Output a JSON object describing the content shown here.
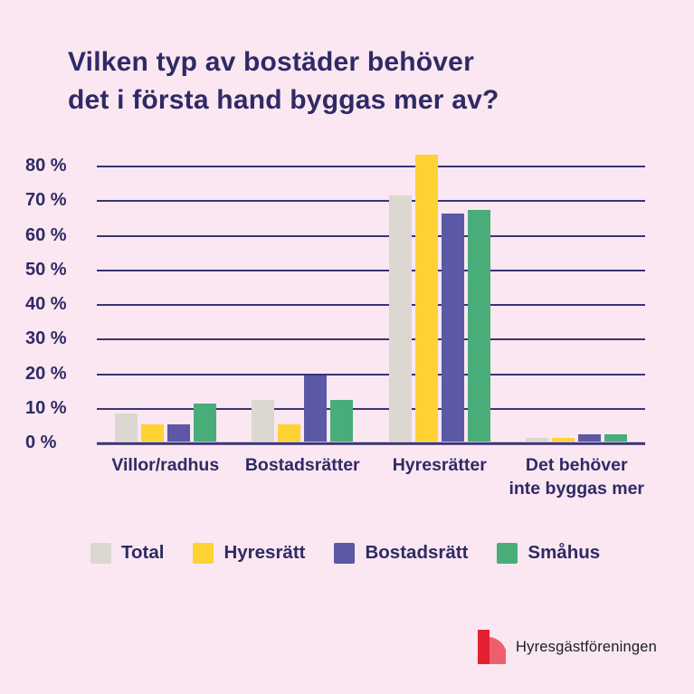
{
  "title_lines": [
    "Vilken typ av bostäder behöver",
    "det i första hand byggas mer av?"
  ],
  "colors": {
    "background": "#fae7f1",
    "heading_text": "#2f2a66",
    "gridline": "#3b3374",
    "bar_total": "#dcd8d1",
    "bar_hyresratt": "#ffd233",
    "bar_bostadsratt": "#5b59a5",
    "bar_smahus": "#48ad78",
    "logo_dark_red": "#e32132",
    "logo_light_red": "#ee5f6e",
    "logo_text": "#1d1d1b"
  },
  "chart_data": {
    "type": "bar",
    "title": "Vilken typ av bostäder behöver det i första hand byggas mer av?",
    "categories": [
      "Villor/radhus",
      "Bostadsrätter",
      "Hyresrätter",
      "Det behöver\ninte byggas mer"
    ],
    "series": [
      {
        "name": "Total",
        "color": "#dcd8d1",
        "values": [
          8,
          12,
          71,
          1
        ]
      },
      {
        "name": "Hyresrätt",
        "color": "#ffd233",
        "values": [
          5,
          5,
          83,
          1
        ]
      },
      {
        "name": "Bostadsrätt",
        "color": "#5b59a5",
        "values": [
          5,
          19,
          66,
          2
        ]
      },
      {
        "name": "Småhus",
        "color": "#48ad78",
        "values": [
          11,
          12,
          67,
          2
        ]
      }
    ],
    "ylabel": "",
    "xlabel": "",
    "unit": "%",
    "ylim": [
      0,
      80
    ],
    "yticks": [
      {
        "label": "80 %",
        "value": 80
      },
      {
        "label": "70 %",
        "value": 70
      },
      {
        "label": "60 %",
        "value": 60
      },
      {
        "label": "50 %",
        "value": 50
      },
      {
        "label": "40 %",
        "value": 40
      },
      {
        "label": "30 %",
        "value": 30
      },
      {
        "label": "20 %",
        "value": 20
      },
      {
        "label": "10 %",
        "value": 10
      },
      {
        "label": "0 %",
        "value": 0
      }
    ],
    "grid": true,
    "legend_position": "bottom"
  },
  "logo": {
    "text": "Hyresgästföreningen"
  }
}
